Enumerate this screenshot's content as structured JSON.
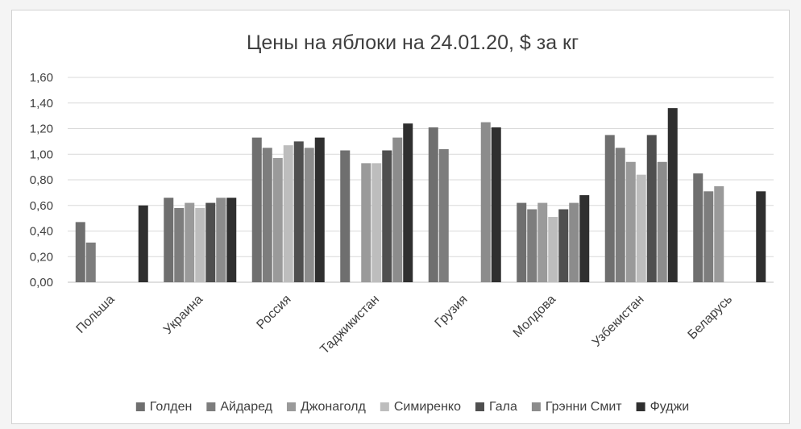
{
  "chart_data": {
    "type": "bar",
    "title": "Цены на яблоки на 24.01.20, $ за кг",
    "xlabel": "",
    "ylabel": "",
    "ylim": [
      0,
      1.6
    ],
    "yticks": [
      "0,00",
      "0,20",
      "0,40",
      "0,60",
      "0,80",
      "1,00",
      "1,20",
      "1,40",
      "1,60"
    ],
    "categories": [
      "Польша",
      "Украина",
      "Россия",
      "Таджикистан",
      "Грузия",
      "Молдова",
      "Узбекистан",
      "Беларусь"
    ],
    "series": [
      {
        "name": "Голден",
        "color": "#6f6f6f",
        "values": [
          0.47,
          0.66,
          1.13,
          1.03,
          1.21,
          0.62,
          1.15,
          0.85
        ]
      },
      {
        "name": "Айдаред",
        "color": "#7d7d7d",
        "values": [
          0.31,
          0.58,
          1.05,
          null,
          1.04,
          0.57,
          1.05,
          0.71
        ]
      },
      {
        "name": "Джонаголд",
        "color": "#9a9a9a",
        "values": [
          null,
          0.62,
          0.97,
          0.93,
          null,
          0.62,
          0.94,
          0.75
        ]
      },
      {
        "name": "Симиренко",
        "color": "#bdbdbd",
        "values": [
          null,
          0.58,
          1.07,
          0.93,
          null,
          0.51,
          0.84,
          null
        ]
      },
      {
        "name": "Гала",
        "color": "#4f4f4f",
        "values": [
          null,
          0.62,
          1.1,
          1.03,
          null,
          0.57,
          1.15,
          null
        ]
      },
      {
        "name": "Грэнни Смит",
        "color": "#8c8c8c",
        "values": [
          null,
          0.66,
          1.05,
          1.13,
          1.25,
          0.62,
          0.94,
          null
        ]
      },
      {
        "name": "Фуджи",
        "color": "#2f2f2f",
        "values": [
          0.6,
          0.66,
          1.13,
          1.24,
          1.21,
          0.68,
          1.36,
          0.71
        ]
      }
    ],
    "grid": true,
    "legend_position": "bottom"
  }
}
